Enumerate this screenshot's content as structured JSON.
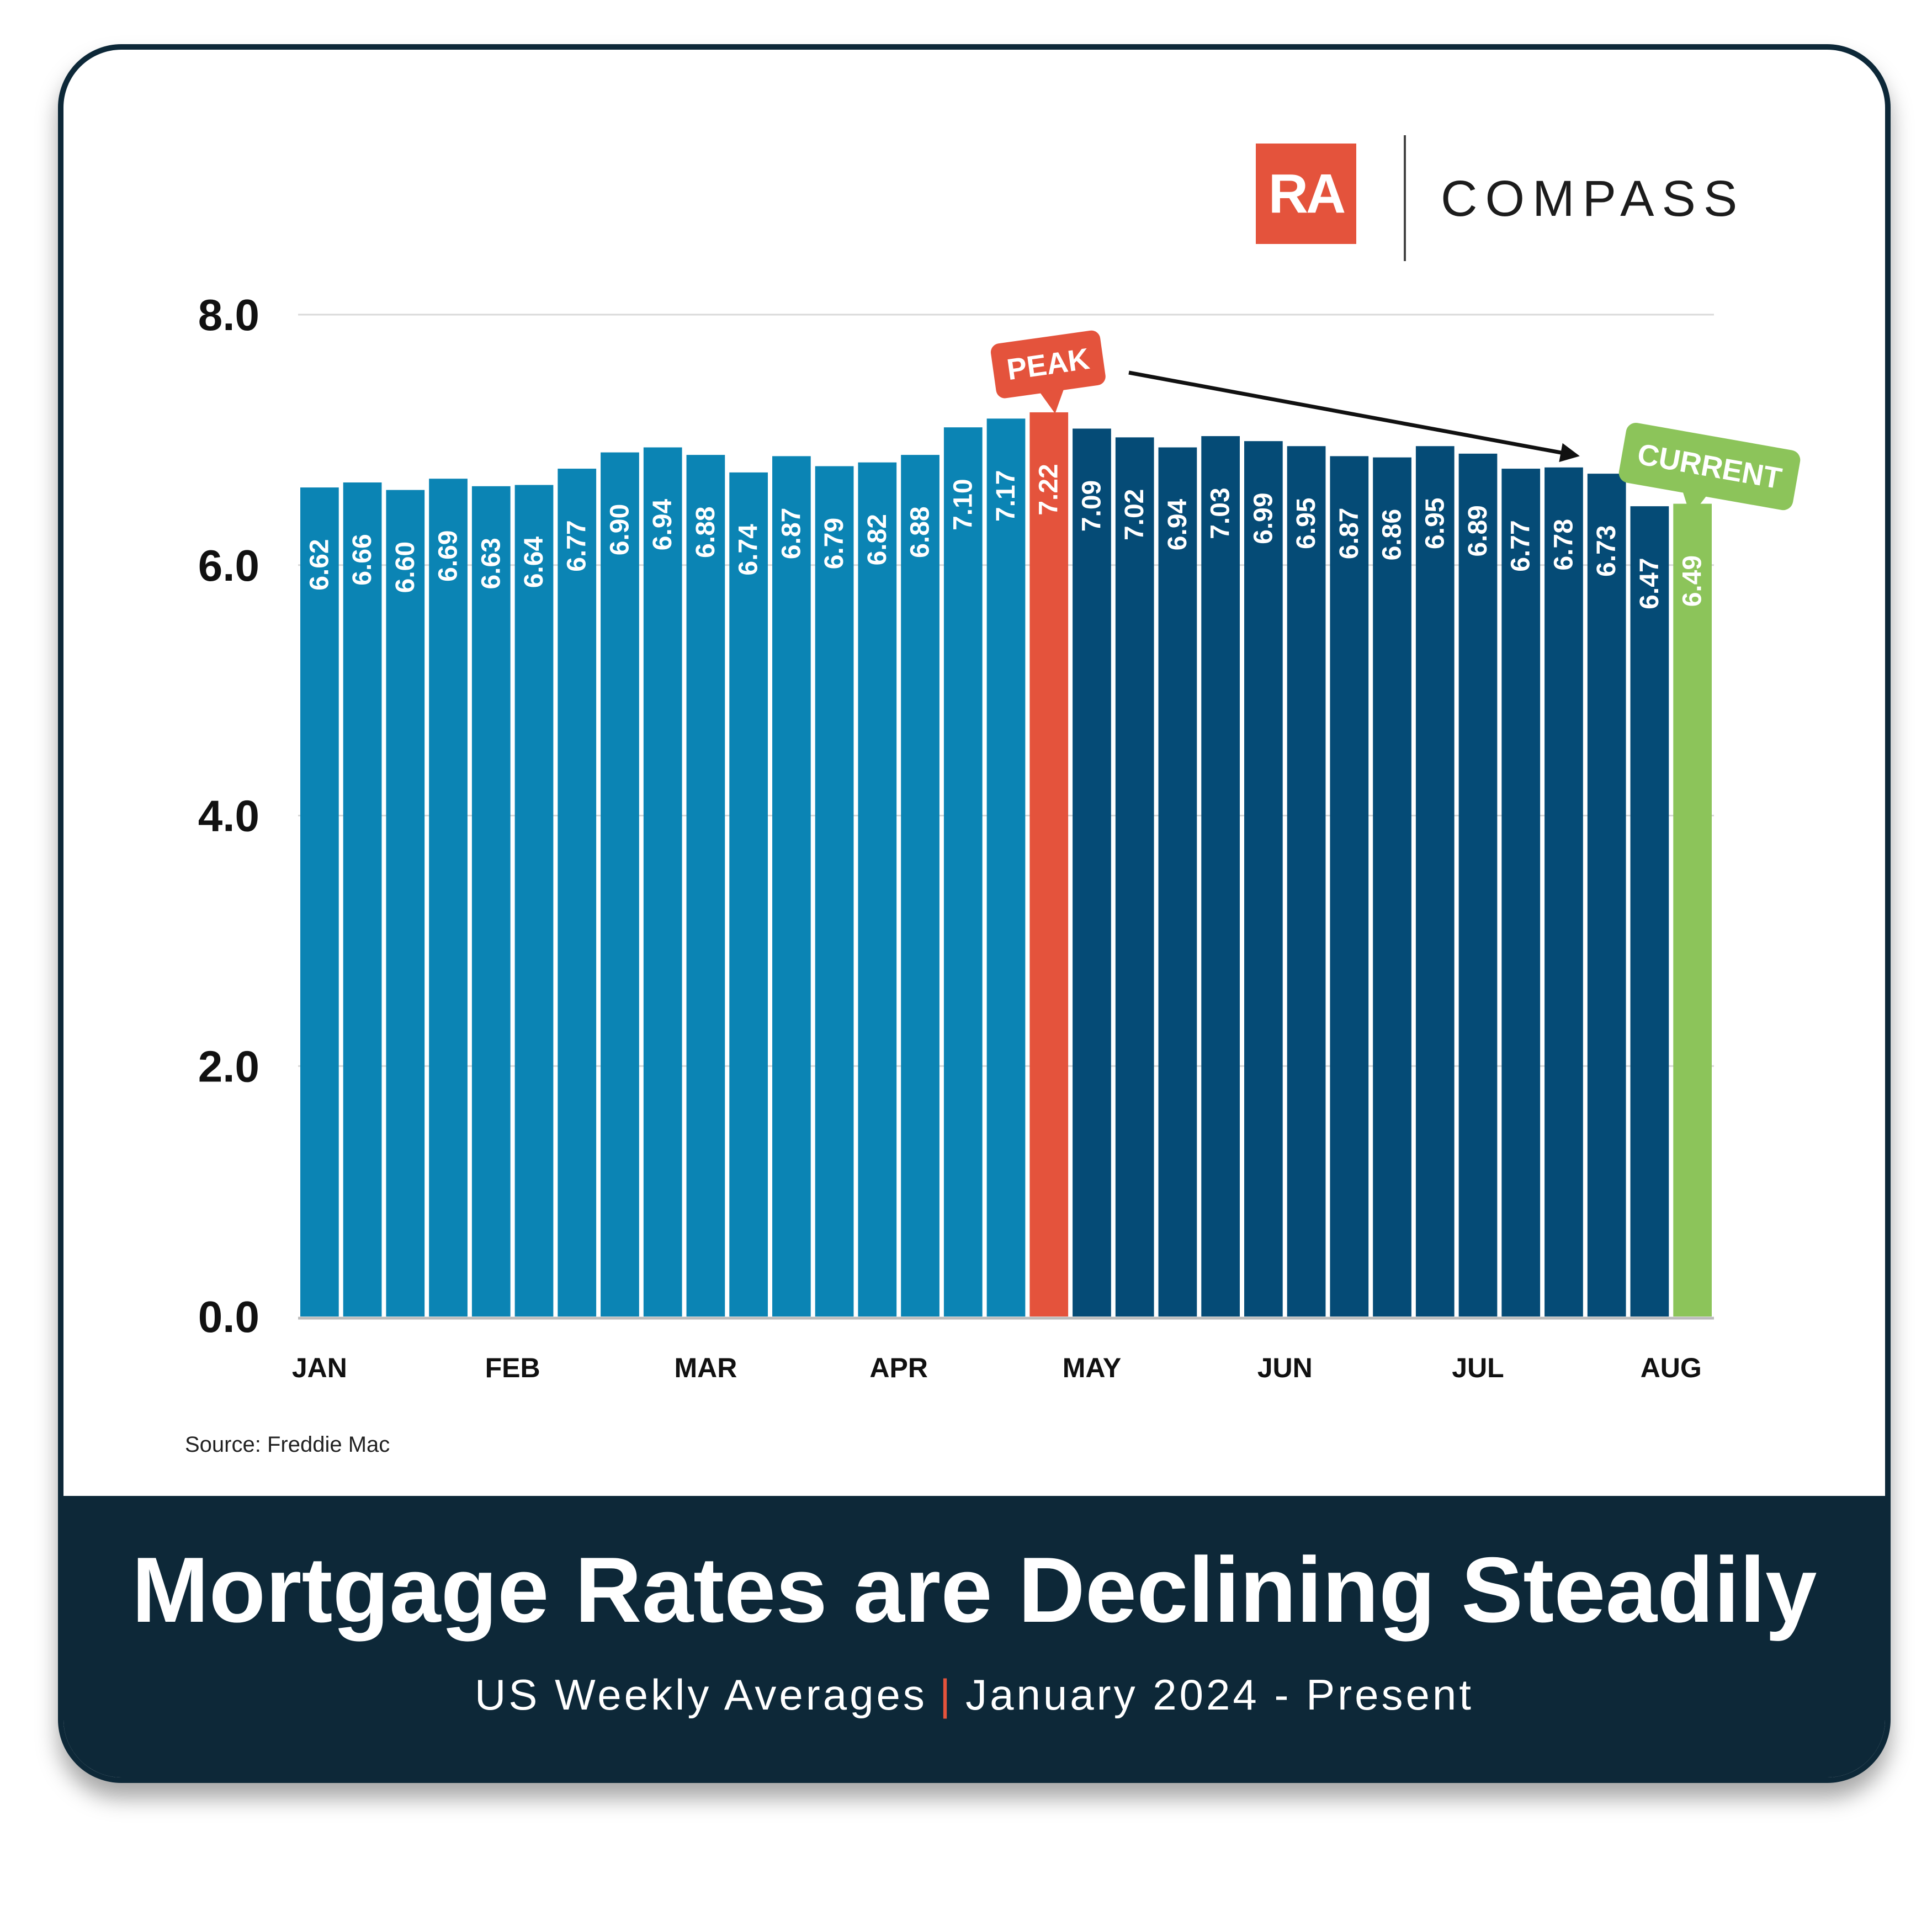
{
  "brand": {
    "ra_logo_text": "RA",
    "compass_logo_text": "COMPASS",
    "accent_color": "#e4533c"
  },
  "chart_data": {
    "type": "bar",
    "title": "Mortgage Rates are Declining Steadily",
    "subtitle_left": "US Weekly Averages",
    "subtitle_separator": "|",
    "subtitle_right": "January 2024 - Present",
    "source": "Source: Freddie Mac",
    "ylim": [
      0,
      8
    ],
    "yticks": [
      "0.0",
      "2.0",
      "4.0",
      "6.0",
      "8.0"
    ],
    "grid": true,
    "month_labels": [
      {
        "label": "JAN",
        "at_week": 1
      },
      {
        "label": "FEB",
        "at_week": 5.5
      },
      {
        "label": "MAR",
        "at_week": 10
      },
      {
        "label": "APR",
        "at_week": 14.5
      },
      {
        "label": "MAY",
        "at_week": 19
      },
      {
        "label": "JUN",
        "at_week": 23.5
      },
      {
        "label": "JUL",
        "at_week": 28
      },
      {
        "label": "AUG",
        "at_week": 32.5
      }
    ],
    "values": [
      6.62,
      6.66,
      6.6,
      6.69,
      6.63,
      6.64,
      6.77,
      6.9,
      6.94,
      6.88,
      6.74,
      6.87,
      6.79,
      6.82,
      6.88,
      7.1,
      7.17,
      7.22,
      7.09,
      7.02,
      6.94,
      7.03,
      6.99,
      6.95,
      6.87,
      6.86,
      6.95,
      6.89,
      6.77,
      6.78,
      6.73,
      6.47,
      6.49
    ],
    "value_labels": [
      "6.62",
      "6.66",
      "6.60",
      "6.69",
      "6.63",
      "6.64",
      "6.77",
      "6.90",
      "6.94",
      "6.88",
      "6.74",
      "6.87",
      "6.79",
      "6.82",
      "6.88",
      "7.10",
      "7.17",
      "7.22",
      "7.09",
      "7.02",
      "6.94",
      "7.03",
      "6.99",
      "6.95",
      "6.87",
      "6.86",
      "6.95",
      "6.89",
      "6.77",
      "6.78",
      "6.73",
      "6.47",
      "6.49"
    ],
    "colors": {
      "rising": "#0b84b4",
      "peak": "#e4533c",
      "falling": "#054b76",
      "current": "#8cc45a",
      "grid": "#d9d9d9",
      "axis": "#bbbbbb"
    },
    "peak_index": 17,
    "current_index": 32,
    "annotations": {
      "peak_label": "PEAK",
      "current_label": "CURRENT"
    }
  }
}
